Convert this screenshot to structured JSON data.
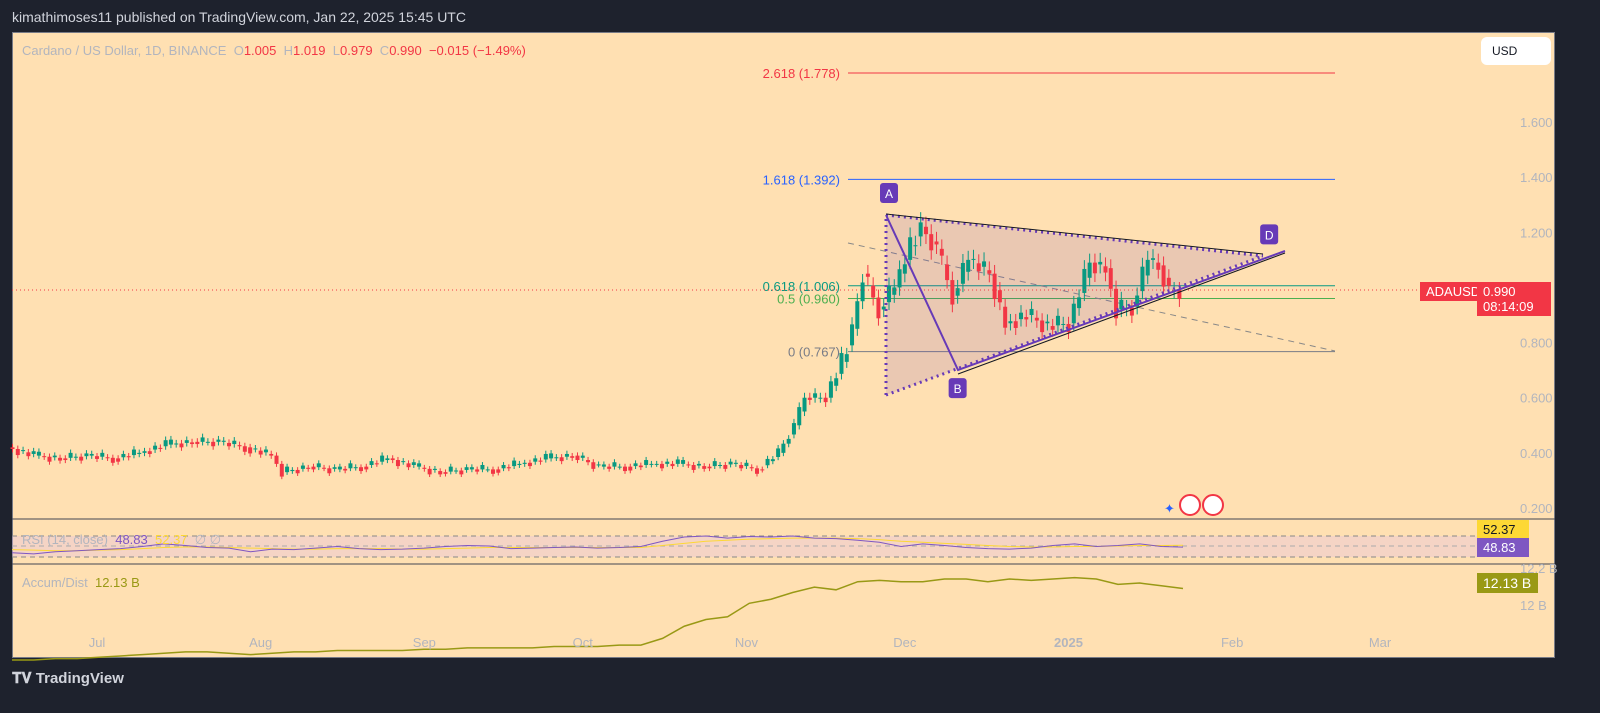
{
  "header": {
    "published": "kimathimoses11 published on TradingView.com, Jan 22, 2025 15:45 UTC"
  },
  "legend": {
    "symbol": "Cardano / US Dollar, 1D, BINANCE",
    "o_label": "O",
    "o": "1.005",
    "h_label": "H",
    "h": "1.019",
    "l_label": "L",
    "l": "0.979",
    "c_label": "C",
    "c": "0.990",
    "change": "−0.015 (−1.49%)"
  },
  "currency_button": "USD",
  "price_tag": {
    "symbol": "ADAUSD",
    "price": "0.990",
    "countdown": "08:14:09"
  },
  "rsi": {
    "label": "RSI (14, close)",
    "value": "48.83",
    "ma_value": "52.37",
    "extra": "∅  ∅"
  },
  "ad": {
    "label": "Accum/Dist",
    "value": "12.13 B",
    "ticks": [
      "12.2 B",
      "12 B"
    ]
  },
  "footer": {
    "logo": "TradingView"
  },
  "colors": {
    "up": "#089981",
    "down": "#f23645",
    "bg": "#ffe0b2",
    "pattern": "#673ab7",
    "rsi": "#7e57c2",
    "rsi_ma": "#fdd835",
    "ad": "#999915"
  },
  "chart_data": {
    "type": "candlestick",
    "ylim": [
      0.2,
      1.8
    ],
    "yticks": [
      "1.600",
      "1.400",
      "1.200",
      "0.800",
      "0.600",
      "0.400",
      "0.200"
    ],
    "xticks": [
      "Jul",
      "Aug",
      "Sep",
      "Oct",
      "Nov",
      "Dec",
      "2025",
      "Feb",
      "Mar"
    ],
    "closes": [
      [
        "2024-06-14",
        0.42
      ],
      [
        "2024-06-19",
        0.39
      ],
      [
        "2024-06-24",
        0.38
      ],
      [
        "2024-06-29",
        0.39
      ],
      [
        "2024-07-04",
        0.38
      ],
      [
        "2024-07-09",
        0.4
      ],
      [
        "2024-07-14",
        0.43
      ],
      [
        "2024-07-19",
        0.44
      ],
      [
        "2024-07-24",
        0.44
      ],
      [
        "2024-07-29",
        0.42
      ],
      [
        "2024-08-03",
        0.39
      ],
      [
        "2024-08-05",
        0.33
      ],
      [
        "2024-08-10",
        0.35
      ],
      [
        "2024-08-15",
        0.34
      ],
      [
        "2024-08-20",
        0.35
      ],
      [
        "2024-08-25",
        0.38
      ],
      [
        "2024-08-30",
        0.35
      ],
      [
        "2024-09-04",
        0.33
      ],
      [
        "2024-09-09",
        0.34
      ],
      [
        "2024-09-14",
        0.34
      ],
      [
        "2024-09-19",
        0.36
      ],
      [
        "2024-09-24",
        0.38
      ],
      [
        "2024-09-29",
        0.39
      ],
      [
        "2024-10-04",
        0.35
      ],
      [
        "2024-10-09",
        0.35
      ],
      [
        "2024-10-14",
        0.36
      ],
      [
        "2024-10-19",
        0.36
      ],
      [
        "2024-10-24",
        0.35
      ],
      [
        "2024-10-29",
        0.36
      ],
      [
        "2024-11-03",
        0.34
      ],
      [
        "2024-11-07",
        0.4
      ],
      [
        "2024-11-10",
        0.5
      ],
      [
        "2024-11-12",
        0.6
      ],
      [
        "2024-11-16",
        0.6
      ],
      [
        "2024-11-19",
        0.73
      ],
      [
        "2024-11-21",
        0.85
      ],
      [
        "2024-11-23",
        1.05
      ],
      [
        "2024-11-26",
        0.92
      ],
      [
        "2024-11-29",
        1.0
      ],
      [
        "2024-12-02",
        1.15
      ],
      [
        "2024-12-04",
        1.22
      ],
      [
        "2024-12-07",
        1.14
      ],
      [
        "2024-12-10",
        0.97
      ],
      [
        "2024-12-13",
        1.1
      ],
      [
        "2024-12-17",
        1.05
      ],
      [
        "2024-12-20",
        0.87
      ],
      [
        "2024-12-24",
        0.9
      ],
      [
        "2024-12-28",
        0.86
      ],
      [
        "2025-01-01",
        0.87
      ],
      [
        "2025-01-05",
        1.09
      ],
      [
        "2025-01-08",
        1.07
      ],
      [
        "2025-01-10",
        0.92
      ],
      [
        "2025-01-13",
        0.93
      ],
      [
        "2025-01-16",
        1.1
      ],
      [
        "2025-01-18",
        1.08
      ],
      [
        "2025-01-20",
        0.99
      ],
      [
        "2025-01-22",
        0.99
      ]
    ],
    "fib_levels": [
      {
        "label": "2.618 (1.778)",
        "price": 1.778,
        "color": "#f23645"
      },
      {
        "label": "1.618 (1.392)",
        "price": 1.392,
        "color": "#2962ff"
      },
      {
        "label": "0.618 (1.006)",
        "price": 1.006,
        "color": "#089981"
      },
      {
        "label": "0.5 (0.960)",
        "price": 0.96,
        "color": "#4caf50"
      },
      {
        "label": "0 (0.767)",
        "price": 0.767,
        "color": "#787b86"
      }
    ],
    "pattern_points": [
      {
        "label": "A",
        "date": "2024-11-28",
        "price": 1.27
      },
      {
        "label": "B",
        "date": "2024-12-11",
        "price": 0.7
      },
      {
        "label": "D",
        "date": "2025-02-08",
        "price": 1.12
      }
    ],
    "rsi_series": [
      38,
      36,
      40,
      42,
      44,
      46,
      50,
      55,
      52,
      48,
      47,
      40,
      45,
      44,
      47,
      50,
      46,
      44,
      45,
      47,
      50,
      52,
      51,
      46,
      47,
      48,
      49,
      47,
      48,
      50,
      60,
      68,
      70,
      66,
      69,
      68,
      70,
      66,
      65,
      62,
      58,
      50,
      55,
      52,
      48,
      46,
      45,
      47,
      52,
      55,
      50,
      52,
      55,
      50,
      48.83
    ],
    "rsi_ma_series": [
      44,
      43,
      42,
      42,
      43,
      44,
      46,
      48,
      49,
      49,
      48,
      47,
      46,
      45,
      45,
      46,
      46,
      46,
      45,
      45,
      46,
      47,
      48,
      48,
      48,
      48,
      48,
      48,
      48,
      48,
      52,
      56,
      60,
      62,
      64,
      65,
      66,
      66,
      66,
      65,
      63,
      60,
      58,
      56,
      54,
      52,
      50,
      49,
      49,
      50,
      50,
      51,
      52,
      52,
      52.37
    ],
    "ad_series": [
      11.6,
      11.6,
      11.61,
      11.61,
      11.62,
      11.63,
      11.64,
      11.65,
      11.66,
      11.66,
      11.65,
      11.64,
      11.65,
      11.66,
      11.66,
      11.67,
      11.67,
      11.67,
      11.67,
      11.68,
      11.68,
      11.69,
      11.69,
      11.69,
      11.69,
      11.7,
      11.7,
      11.7,
      11.71,
      11.71,
      11.76,
      11.85,
      11.9,
      11.92,
      12.02,
      12.05,
      12.1,
      12.14,
      12.12,
      12.18,
      12.19,
      12.18,
      12.18,
      12.2,
      12.2,
      12.18,
      12.2,
      12.19,
      12.2,
      12.21,
      12.2,
      12.16,
      12.17,
      12.15,
      12.13
    ]
  }
}
